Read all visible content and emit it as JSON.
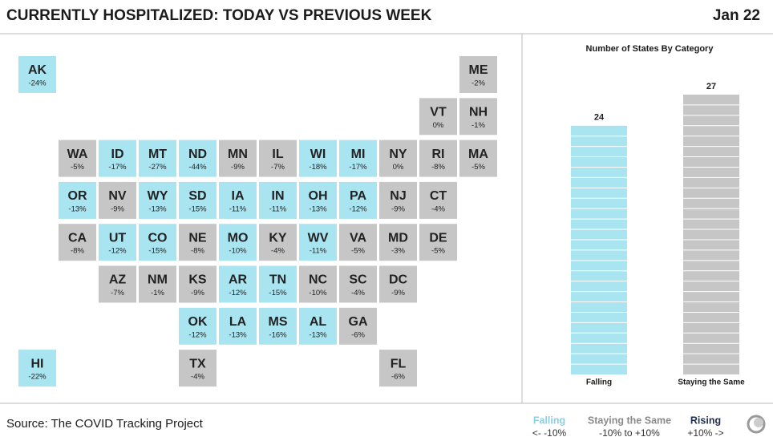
{
  "header": {
    "title": "CURRENTLY HOSPITALIZED: TODAY VS PREVIOUS WEEK",
    "date": "Jan 22"
  },
  "tile_map": {
    "states": [
      {
        "code": "AK",
        "change": "-24%",
        "status": "Falling"
      },
      {
        "code": "ME",
        "change": "-2%",
        "status": "Staying the Same"
      },
      {
        "code": "VT",
        "change": "0%",
        "status": "Staying the Same"
      },
      {
        "code": "NH",
        "change": "-1%",
        "status": "Staying the Same"
      },
      {
        "code": "WA",
        "change": "-5%",
        "status": "Staying the Same"
      },
      {
        "code": "ID",
        "change": "-17%",
        "status": "Falling"
      },
      {
        "code": "MT",
        "change": "-27%",
        "status": "Falling"
      },
      {
        "code": "ND",
        "change": "-44%",
        "status": "Falling"
      },
      {
        "code": "MN",
        "change": "-9%",
        "status": "Staying the Same"
      },
      {
        "code": "IL",
        "change": "-7%",
        "status": "Staying the Same"
      },
      {
        "code": "WI",
        "change": "-18%",
        "status": "Falling"
      },
      {
        "code": "MI",
        "change": "-17%",
        "status": "Falling"
      },
      {
        "code": "NY",
        "change": "0%",
        "status": "Staying the Same"
      },
      {
        "code": "RI",
        "change": "-8%",
        "status": "Staying the Same"
      },
      {
        "code": "MA",
        "change": "-5%",
        "status": "Staying the Same"
      },
      {
        "code": "OR",
        "change": "-13%",
        "status": "Falling"
      },
      {
        "code": "NV",
        "change": "-9%",
        "status": "Staying the Same"
      },
      {
        "code": "WY",
        "change": "-13%",
        "status": "Falling"
      },
      {
        "code": "SD",
        "change": "-15%",
        "status": "Falling"
      },
      {
        "code": "IA",
        "change": "-11%",
        "status": "Falling"
      },
      {
        "code": "IN",
        "change": "-11%",
        "status": "Falling"
      },
      {
        "code": "OH",
        "change": "-13%",
        "status": "Falling"
      },
      {
        "code": "PA",
        "change": "-12%",
        "status": "Falling"
      },
      {
        "code": "NJ",
        "change": "-9%",
        "status": "Staying the Same"
      },
      {
        "code": "CT",
        "change": "-4%",
        "status": "Staying the Same"
      },
      {
        "code": "CA",
        "change": "-8%",
        "status": "Staying the Same"
      },
      {
        "code": "UT",
        "change": "-12%",
        "status": "Falling"
      },
      {
        "code": "CO",
        "change": "-15%",
        "status": "Falling"
      },
      {
        "code": "NE",
        "change": "-8%",
        "status": "Staying the Same"
      },
      {
        "code": "MO",
        "change": "-10%",
        "status": "Falling"
      },
      {
        "code": "KY",
        "change": "-4%",
        "status": "Staying the Same"
      },
      {
        "code": "WV",
        "change": "-11%",
        "status": "Falling"
      },
      {
        "code": "VA",
        "change": "-5%",
        "status": "Staying the Same"
      },
      {
        "code": "MD",
        "change": "-3%",
        "status": "Staying the Same"
      },
      {
        "code": "DE",
        "change": "-5%",
        "status": "Staying the Same"
      },
      {
        "code": "AZ",
        "change": "-7%",
        "status": "Staying the Same"
      },
      {
        "code": "NM",
        "change": "-1%",
        "status": "Staying the Same"
      },
      {
        "code": "KS",
        "change": "-9%",
        "status": "Staying the Same"
      },
      {
        "code": "AR",
        "change": "-12%",
        "status": "Falling"
      },
      {
        "code": "TN",
        "change": "-15%",
        "status": "Falling"
      },
      {
        "code": "NC",
        "change": "-10%",
        "status": "Staying the Same"
      },
      {
        "code": "SC",
        "change": "-4%",
        "status": "Staying the Same"
      },
      {
        "code": "DC",
        "change": "-9%",
        "status": "Staying the Same"
      },
      {
        "code": "OK",
        "change": "-12%",
        "status": "Falling"
      },
      {
        "code": "LA",
        "change": "-13%",
        "status": "Falling"
      },
      {
        "code": "MS",
        "change": "-16%",
        "status": "Falling"
      },
      {
        "code": "AL",
        "change": "-13%",
        "status": "Falling"
      },
      {
        "code": "GA",
        "change": "-6%",
        "status": "Staying the Same"
      },
      {
        "code": "HI",
        "change": "-22%",
        "status": "Falling"
      },
      {
        "code": "TX",
        "change": "-4%",
        "status": "Staying the Same"
      },
      {
        "code": "FL",
        "change": "-6%",
        "status": "Staying the Same"
      }
    ]
  },
  "chart_data": {
    "type": "bar",
    "title": "Number of States By Category",
    "categories": [
      "Falling",
      "Staying the Same"
    ],
    "values": [
      24,
      27
    ],
    "colors": [
      "#a9e4f1",
      "#c6c6c6"
    ],
    "ylim": [
      0,
      27
    ]
  },
  "legend": [
    {
      "name": "Falling",
      "range": "<- -10%",
      "color": "#8ccfe0",
      "tile_color": "#a9e4f1"
    },
    {
      "name": "Staying the Same",
      "range": "-10% to +10%",
      "color": "#8a8a8a",
      "tile_color": "#c6c6c6"
    },
    {
      "name": "Rising",
      "range": "+10% ->",
      "color": "#1d2d4f",
      "tile_color": "#1d2d4f"
    }
  ],
  "footer": {
    "source": "Source: The COVID Tracking Project"
  }
}
